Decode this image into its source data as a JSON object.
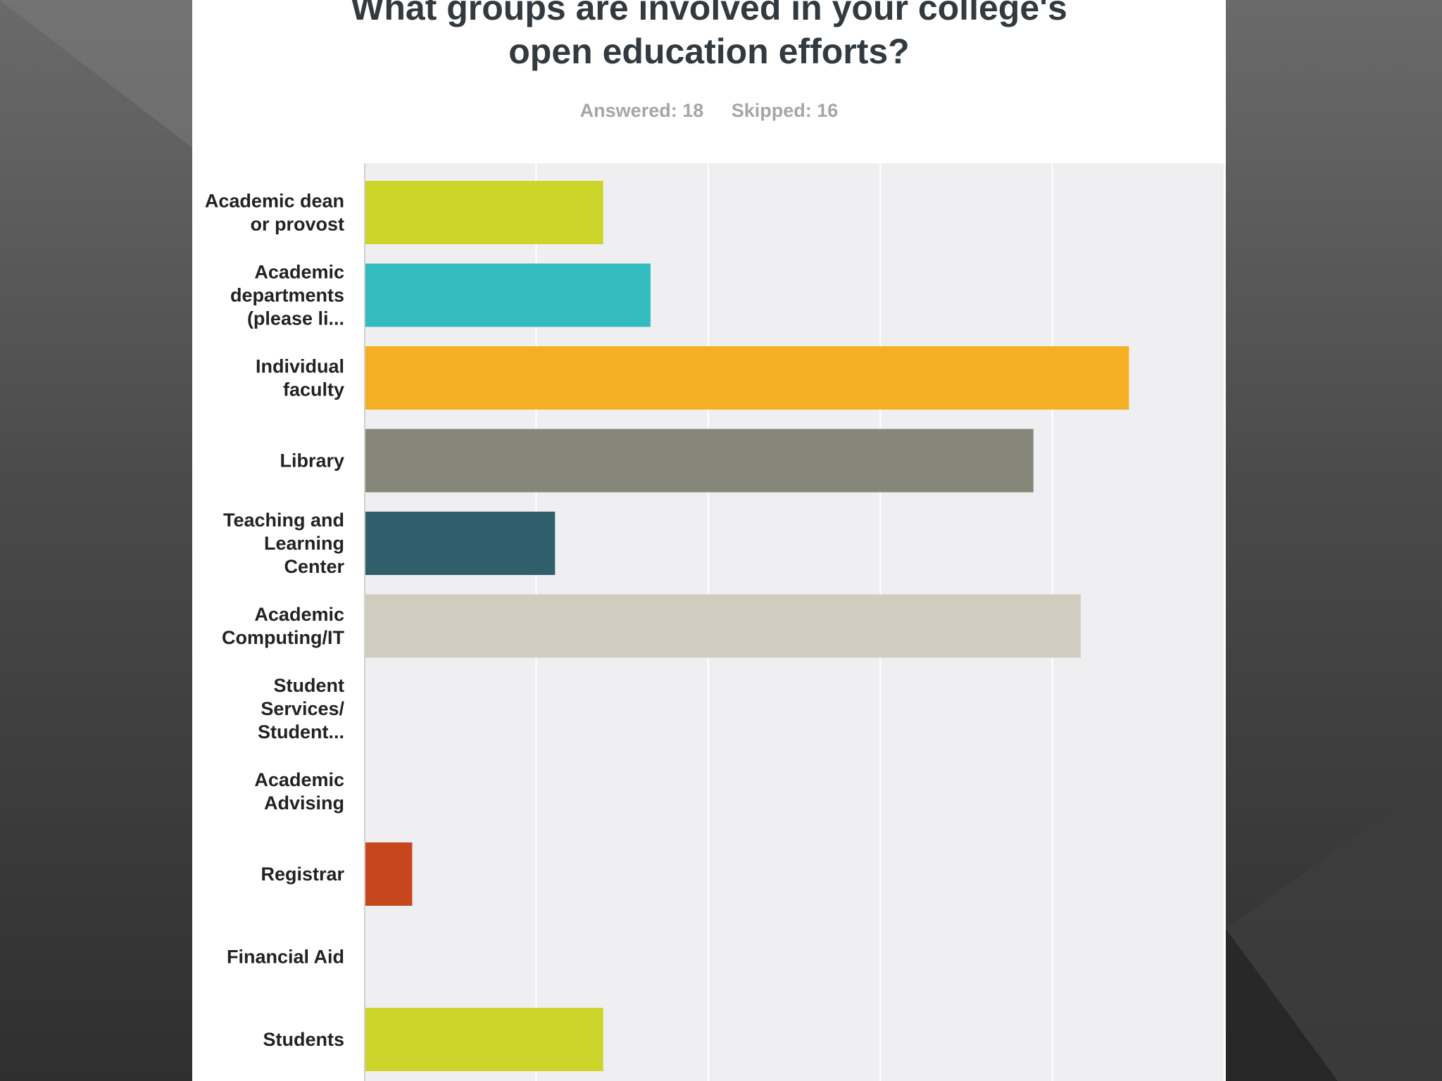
{
  "colors": {
    "panel_bg": "#ffffff",
    "plot_bg": "#efeff1",
    "gridline": "#ffffff",
    "axis": "#cfcfcf",
    "title": "#333a3f",
    "meta": "#a3a7aa",
    "label": "#222222"
  },
  "chart_data": {
    "type": "bar",
    "orientation": "horizontal",
    "title": "What groups are involved in your college's open education efforts?",
    "title_lines": [
      "What groups are involved in your college's",
      "open education efforts?"
    ],
    "subtitle": {
      "answered": "Answered: 18",
      "skipped": "Skipped: 16"
    },
    "categories": [
      [
        "Academic dean",
        "or provost"
      ],
      [
        "Academic",
        "departments",
        "(please li..."
      ],
      [
        "Individual",
        "faculty"
      ],
      [
        "Library"
      ],
      [
        "Teaching and",
        "Learning",
        "Center"
      ],
      [
        "Academic",
        "Computing/IT"
      ],
      [
        "Student",
        "Services/",
        "Student..."
      ],
      [
        "Academic",
        "Advising"
      ],
      [
        "Registrar"
      ],
      [
        "Financial Aid"
      ],
      [
        "Students"
      ]
    ],
    "values": [
      0.278,
      0.333,
      0.889,
      0.778,
      0.222,
      0.833,
      0,
      0,
      0.056,
      0,
      0.278
    ],
    "colors": [
      "#cdd52b",
      "#33bcbf",
      "#f4af22",
      "#878779",
      "#2e5f6b",
      "#d0cdc0",
      "#cdd52b",
      "#cdd52b",
      "#c8461d",
      "#cdd52b",
      "#cdd52b"
    ],
    "xlim": [
      0,
      1
    ],
    "gridlines": [
      0,
      0.2,
      0.4,
      0.6,
      0.8,
      1.0
    ],
    "grid": true,
    "legend": "none"
  }
}
